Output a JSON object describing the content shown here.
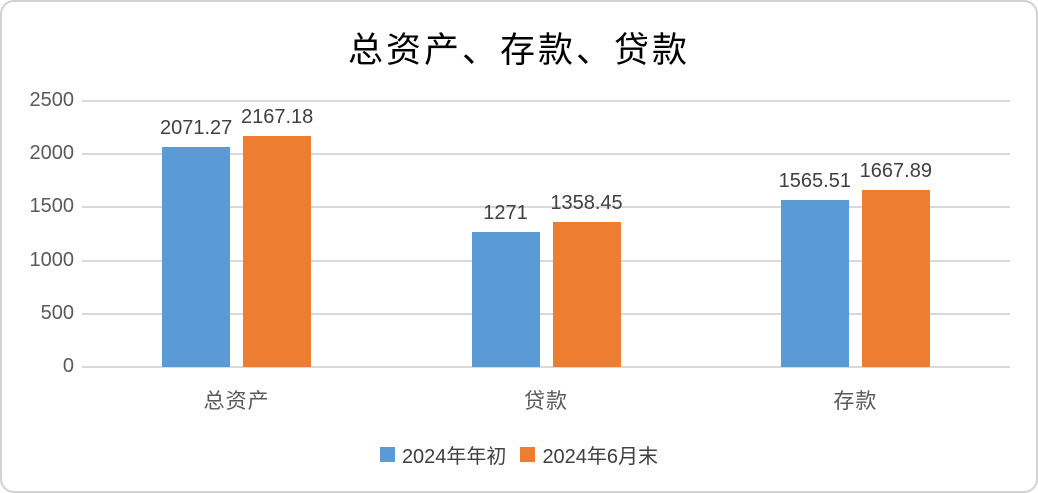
{
  "chart_data": {
    "type": "bar",
    "title": "总资产、存款、贷款",
    "categories": [
      "总资产",
      "贷款",
      "存款"
    ],
    "series": [
      {
        "name": "2024年年初",
        "color": "#5B9BD5",
        "values": [
          2071.27,
          1271,
          1565.51
        ],
        "labels": [
          "2071.27",
          "1271",
          "1565.51"
        ]
      },
      {
        "name": "2024年6月末",
        "color": "#ED7D31",
        "values": [
          2167.18,
          1358.45,
          1667.89
        ],
        "labels": [
          "2167.18",
          "1358.45",
          "1667.89"
        ]
      }
    ],
    "y_ticks": [
      0,
      500,
      1000,
      1500,
      2000,
      2500
    ],
    "ylim": [
      0,
      2500
    ],
    "xlabel": "",
    "ylabel": "",
    "grid": true,
    "legend_position": "bottom"
  },
  "colors": {
    "gridline": "#d9d9d9",
    "axis_label": "#595959",
    "data_label": "#404040",
    "title": "#000000",
    "frame_border": "#d2d2d2",
    "background": "#ffffff"
  }
}
